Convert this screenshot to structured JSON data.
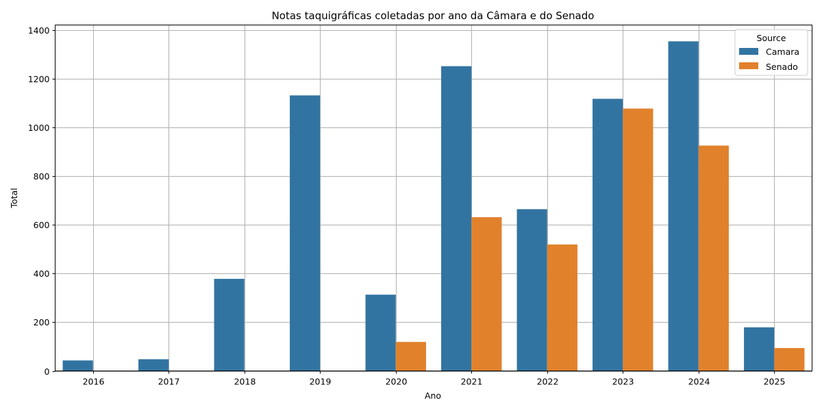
{
  "chart_data": {
    "type": "bar",
    "title": "Notas taquigráficas coletadas por ano da Câmara e do Senado",
    "xlabel": "Ano",
    "ylabel": "Total",
    "categories": [
      "2016",
      "2017",
      "2018",
      "2019",
      "2020",
      "2021",
      "2022",
      "2023",
      "2024",
      "2025"
    ],
    "series": [
      {
        "name": "Camara",
        "color": "#3274a1",
        "values": [
          43,
          48,
          378,
          1131,
          313,
          1251,
          664,
          1117,
          1353,
          179
        ]
      },
      {
        "name": "Senado",
        "color": "#e1812c",
        "values": [
          0,
          0,
          0,
          0,
          119,
          631,
          519,
          1077,
          925,
          94
        ]
      }
    ],
    "ylim": [
      0,
      1420
    ],
    "yticks": [
      0,
      200,
      400,
      600,
      800,
      1000,
      1200,
      1400
    ],
    "grid": true,
    "legend": {
      "title": "Source",
      "placement": "top-right"
    }
  }
}
